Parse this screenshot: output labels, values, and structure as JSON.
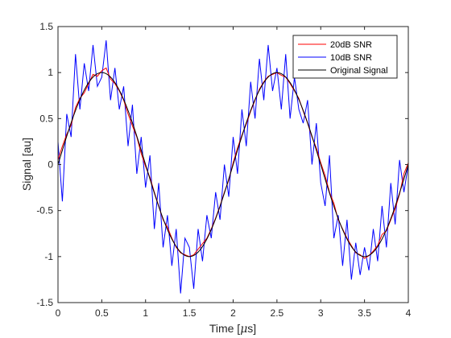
{
  "chart_data": {
    "type": "line",
    "title": "",
    "xlabel_main": "Time [",
    "xlabel_mu": "μ",
    "xlabel_tail": "s]",
    "ylabel": "Signal [au]",
    "xlim": [
      0,
      4
    ],
    "ylim": [
      -1.5,
      1.5
    ],
    "grid": false,
    "legend_position": "top-right",
    "x_ticks": [
      "0",
      "0.5",
      "1",
      "1.5",
      "2",
      "2.5",
      "3",
      "3.5",
      "4"
    ],
    "y_ticks": [
      "-1.5",
      "-1",
      "-0.5",
      "0",
      "0.5",
      "1",
      "1.5"
    ],
    "x_tick_values": [
      0,
      0.5,
      1,
      1.5,
      2,
      2.5,
      3,
      3.5,
      4
    ],
    "y_tick_values": [
      -1.5,
      -1,
      -0.5,
      0,
      0.5,
      1,
      1.5
    ],
    "signal": {
      "amplitude": 1,
      "period": 2,
      "x_start": 0,
      "x_end": 4
    },
    "series": [
      {
        "name": "20dB SNR",
        "color": "#ff0000",
        "x": [
          0,
          0.05,
          0.1,
          0.15,
          0.2,
          0.25,
          0.3,
          0.35,
          0.4,
          0.45,
          0.5,
          0.55,
          0.6,
          0.65,
          0.7,
          0.75,
          0.8,
          0.85,
          0.9,
          0.95,
          1.0,
          1.05,
          1.1,
          1.15,
          1.2,
          1.25,
          1.3,
          1.35,
          1.4,
          1.45,
          1.5,
          1.55,
          1.6,
          1.65,
          1.7,
          1.75,
          1.8,
          1.85,
          1.9,
          1.95,
          2.0,
          2.05,
          2.1,
          2.15,
          2.2,
          2.25,
          2.3,
          2.35,
          2.4,
          2.45,
          2.5,
          2.55,
          2.6,
          2.65,
          2.7,
          2.75,
          2.8,
          2.85,
          2.9,
          2.95,
          3.0,
          3.05,
          3.1,
          3.15,
          3.2,
          3.25,
          3.3,
          3.35,
          3.4,
          3.45,
          3.5,
          3.55,
          3.6,
          3.65,
          3.7,
          3.75,
          3.8,
          3.85,
          3.9,
          3.95,
          4.0
        ],
        "values": [
          0.05,
          0.2,
          0.33,
          0.43,
          0.62,
          0.72,
          0.78,
          0.88,
          0.98,
          0.96,
          1.02,
          1.05,
          0.93,
          0.88,
          0.8,
          0.7,
          0.55,
          0.42,
          0.3,
          0.12,
          -0.02,
          -0.14,
          -0.3,
          -0.45,
          -0.6,
          -0.68,
          -0.8,
          -0.9,
          -0.96,
          -0.98,
          -1.0,
          -0.98,
          -0.92,
          -0.86,
          -0.8,
          -0.7,
          -0.58,
          -0.45,
          -0.3,
          -0.17,
          0.02,
          0.18,
          0.32,
          0.44,
          0.58,
          0.7,
          0.82,
          0.9,
          0.96,
          0.98,
          1.0,
          0.97,
          0.95,
          0.88,
          0.8,
          0.72,
          0.58,
          0.45,
          0.3,
          0.18,
          0.02,
          -0.12,
          -0.3,
          -0.42,
          -0.6,
          -0.7,
          -0.8,
          -0.88,
          -0.96,
          -0.98,
          -1.02,
          -0.99,
          -0.94,
          -0.88,
          -0.76,
          -0.72,
          -0.6,
          -0.48,
          -0.32,
          -0.1,
          0.02
        ]
      },
      {
        "name": "10dB SNR",
        "color": "#0000ff",
        "x": [
          0,
          0.05,
          0.1,
          0.15,
          0.2,
          0.25,
          0.3,
          0.35,
          0.4,
          0.45,
          0.5,
          0.55,
          0.6,
          0.65,
          0.7,
          0.75,
          0.8,
          0.85,
          0.9,
          0.95,
          1.0,
          1.05,
          1.1,
          1.15,
          1.2,
          1.25,
          1.3,
          1.35,
          1.4,
          1.45,
          1.5,
          1.55,
          1.6,
          1.65,
          1.7,
          1.75,
          1.8,
          1.85,
          1.9,
          1.95,
          2.0,
          2.05,
          2.1,
          2.15,
          2.2,
          2.25,
          2.3,
          2.35,
          2.4,
          2.45,
          2.5,
          2.55,
          2.6,
          2.65,
          2.7,
          2.75,
          2.8,
          2.85,
          2.9,
          2.95,
          3.0,
          3.05,
          3.1,
          3.15,
          3.2,
          3.25,
          3.3,
          3.35,
          3.4,
          3.45,
          3.5,
          3.55,
          3.6,
          3.65,
          3.7,
          3.75,
          3.8,
          3.85,
          3.9,
          3.95,
          4.0
        ],
        "values": [
          0.25,
          -0.4,
          0.55,
          0.3,
          1.2,
          0.6,
          1.1,
          0.8,
          1.3,
          0.85,
          0.95,
          1.35,
          0.7,
          1.05,
          0.6,
          0.85,
          0.2,
          0.65,
          -0.1,
          0.3,
          -0.25,
          0.1,
          -0.7,
          -0.2,
          -0.9,
          -0.55,
          -1.1,
          -0.7,
          -1.4,
          -0.8,
          -0.9,
          -1.35,
          -0.7,
          -1.05,
          -0.55,
          -0.8,
          -0.3,
          -0.6,
          0.0,
          -0.35,
          0.3,
          -0.1,
          0.6,
          0.2,
          0.9,
          0.5,
          1.15,
          0.7,
          1.3,
          0.8,
          1.05,
          0.6,
          1.2,
          0.5,
          0.95,
          0.6,
          0.45,
          0.7,
          0.0,
          0.45,
          -0.2,
          -0.45,
          0.1,
          -0.8,
          -0.55,
          -1.1,
          -0.6,
          -1.25,
          -0.85,
          -1.2,
          -0.9,
          -1.15,
          -0.7,
          -1.05,
          -0.45,
          -0.9,
          -0.2,
          -0.65,
          0.05,
          -0.3,
          0.0
        ]
      },
      {
        "name": "Original Signal",
        "color": "#000000"
      }
    ]
  }
}
